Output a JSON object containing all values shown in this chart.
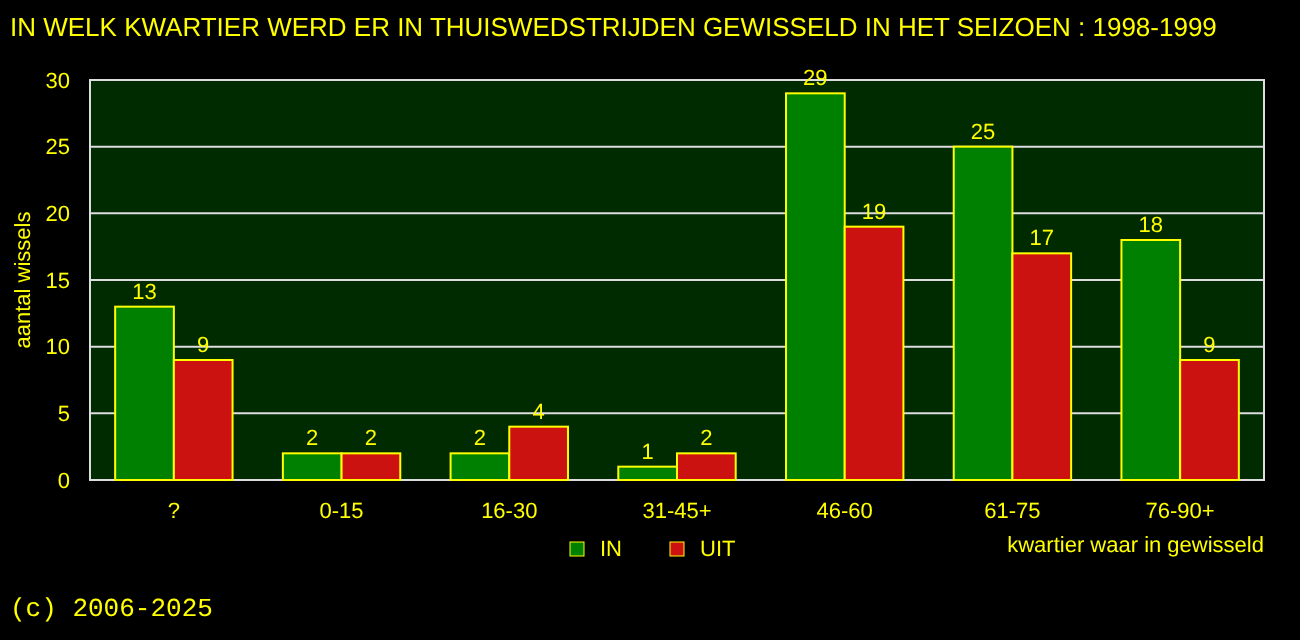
{
  "chart_data": {
    "type": "bar",
    "title": "IN WELK KWARTIER WERD ER IN THUISWEDSTRIJDEN GEWISSELD IN HET SEIZOEN : 1998-1999",
    "categories": [
      "?",
      "0-15",
      "16-30",
      "31-45+",
      "46-60",
      "61-75",
      "76-90+"
    ],
    "series": [
      {
        "name": "IN",
        "color": "#008000",
        "values": [
          13,
          2,
          2,
          1,
          29,
          25,
          18
        ]
      },
      {
        "name": "UIT",
        "color": "#cc1111",
        "values": [
          9,
          2,
          4,
          2,
          19,
          17,
          9
        ]
      }
    ],
    "ylim": [
      0,
      30
    ],
    "yticks": [
      0,
      5,
      10,
      15,
      20,
      25,
      30
    ],
    "ylabel": "aantal wissels",
    "xlabel": "kwartier waar in gewisseld",
    "grid": "y",
    "legend": "bottom",
    "data_labels": true,
    "annotations": [
      "(c) 2006-2025"
    ]
  }
}
